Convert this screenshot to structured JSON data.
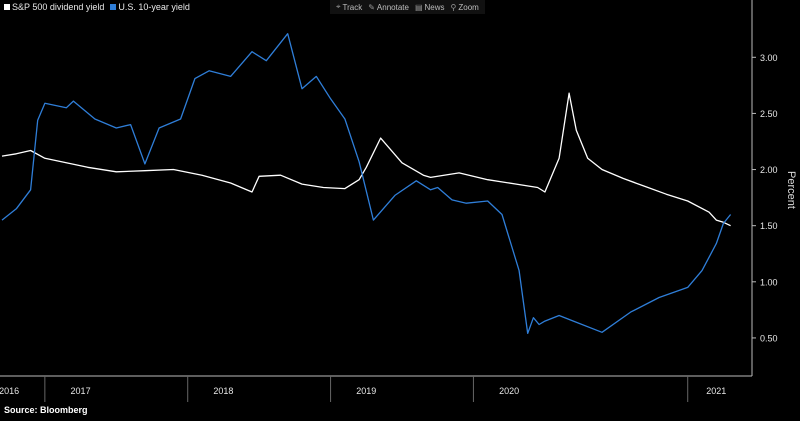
{
  "legend": [
    {
      "label": "S&P 500 dividend yield",
      "color": "#ffffff"
    },
    {
      "label": "U.S. 10-year yield",
      "color": "#2f7ed8"
    }
  ],
  "toolbar": [
    {
      "label": "Track",
      "icon": "crosshair-icon"
    },
    {
      "label": "Annotate",
      "icon": "pencil-icon"
    },
    {
      "label": "News",
      "icon": "news-icon"
    },
    {
      "label": "Zoom",
      "icon": "magnifier-icon"
    }
  ],
  "source": "Source: Bloomberg",
  "chart_data": {
    "type": "line",
    "ylabel": "Percent",
    "ylim": [
      0.25,
      3.35
    ],
    "yticks": [
      0.5,
      1.0,
      1.5,
      2.0,
      2.5,
      3.0
    ],
    "ytick_labels": [
      "0.50",
      "1.00",
      "1.50",
      "2.00",
      "2.50",
      "3.00"
    ],
    "xlim": [
      2016.0,
      2021.25
    ],
    "xticks": [
      {
        "label": "2016",
        "value": 2016.05
      },
      {
        "label": "2017",
        "value": 2016.55
      },
      {
        "label": "2018",
        "value": 2017.55
      },
      {
        "label": "2019",
        "value": 2018.55
      },
      {
        "label": "2020",
        "value": 2019.55
      },
      {
        "label": "2021",
        "value": 2021.0
      }
    ],
    "legend_position": "top-left",
    "grid": false,
    "series": [
      {
        "name": "S&P 500 dividend yield",
        "color": "#ffffff",
        "x": [
          2016.0,
          2016.1,
          2016.2,
          2016.3,
          2016.45,
          2016.6,
          2016.8,
          2017.0,
          2017.2,
          2017.4,
          2017.6,
          2017.75,
          2017.8,
          2017.95,
          2018.1,
          2018.25,
          2018.4,
          2018.5,
          2018.55,
          2018.65,
          2018.8,
          2018.95,
          2019.0,
          2019.2,
          2019.4,
          2019.6,
          2019.75,
          2019.8,
          2019.9,
          2019.97,
          2020.02,
          2020.1,
          2020.2,
          2020.35,
          2020.5,
          2020.65,
          2020.8,
          2020.95,
          2021.0,
          2021.05,
          2021.1
        ],
        "y": [
          2.12,
          2.14,
          2.17,
          2.1,
          2.06,
          2.02,
          1.98,
          1.99,
          2.0,
          1.95,
          1.88,
          1.8,
          1.94,
          1.95,
          1.87,
          1.84,
          1.83,
          1.91,
          2.02,
          2.28,
          2.06,
          1.95,
          1.93,
          1.97,
          1.91,
          1.87,
          1.84,
          1.8,
          2.1,
          2.68,
          2.35,
          2.1,
          2.0,
          1.92,
          1.85,
          1.78,
          1.72,
          1.62,
          1.55,
          1.53,
          1.5
        ]
      },
      {
        "name": "U.S. 10-year yield",
        "color": "#2f7ed8",
        "x": [
          2016.0,
          2016.1,
          2016.2,
          2016.25,
          2016.3,
          2016.45,
          2016.5,
          2016.65,
          2016.8,
          2016.9,
          2017.0,
          2017.1,
          2017.25,
          2017.35,
          2017.45,
          2017.6,
          2017.75,
          2017.85,
          2018.0,
          2018.1,
          2018.2,
          2018.3,
          2018.4,
          2018.5,
          2018.6,
          2018.75,
          2018.9,
          2019.0,
          2019.05,
          2019.15,
          2019.25,
          2019.4,
          2019.5,
          2019.62,
          2019.68,
          2019.72,
          2019.76,
          2019.8,
          2019.9,
          2020.0,
          2020.2,
          2020.4,
          2020.6,
          2020.8,
          2020.9,
          2021.0,
          2021.05,
          2021.1
        ],
        "y": [
          1.55,
          1.65,
          1.82,
          2.44,
          2.59,
          2.55,
          2.61,
          2.45,
          2.37,
          2.4,
          2.05,
          2.37,
          2.45,
          2.81,
          2.88,
          2.83,
          3.05,
          2.97,
          3.21,
          2.72,
          2.83,
          2.63,
          2.45,
          2.07,
          1.55,
          1.77,
          1.9,
          1.82,
          1.84,
          1.73,
          1.7,
          1.72,
          1.6,
          1.1,
          0.54,
          0.68,
          0.62,
          0.65,
          0.7,
          0.65,
          0.55,
          0.73,
          0.86,
          0.95,
          1.1,
          1.34,
          1.52,
          1.6
        ]
      }
    ]
  }
}
